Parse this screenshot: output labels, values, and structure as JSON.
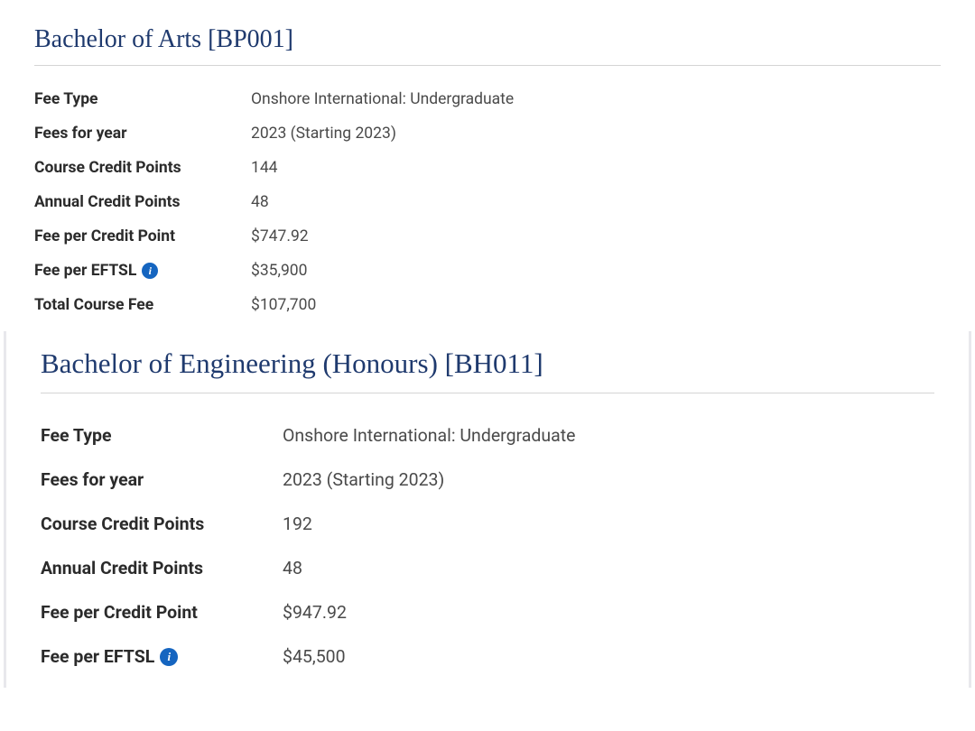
{
  "courses": [
    {
      "title": "Bachelor of Arts [BP001]",
      "rows": [
        {
          "label": "Fee Type",
          "value": "Onshore International: Undergraduate",
          "hasInfo": false
        },
        {
          "label": "Fees for year",
          "value": "2023 (Starting 2023)",
          "hasInfo": false
        },
        {
          "label": "Course Credit Points",
          "value": "144",
          "hasInfo": false
        },
        {
          "label": "Annual Credit Points",
          "value": "48",
          "hasInfo": false
        },
        {
          "label": "Fee per Credit Point",
          "value": "$747.92",
          "hasInfo": false
        },
        {
          "label": "Fee per EFTSL",
          "value": "$35,900",
          "hasInfo": true
        },
        {
          "label": "Total Course Fee",
          "value": "$107,700",
          "hasInfo": false
        }
      ]
    },
    {
      "title": "Bachelor of Engineering (Honours) [BH011]",
      "rows": [
        {
          "label": "Fee Type",
          "value": "Onshore International: Undergraduate",
          "hasInfo": false
        },
        {
          "label": "Fees for year",
          "value": "2023 (Starting 2023)",
          "hasInfo": false
        },
        {
          "label": "Course Credit Points",
          "value": "192",
          "hasInfo": false
        },
        {
          "label": "Annual Credit Points",
          "value": "48",
          "hasInfo": false
        },
        {
          "label": "Fee per Credit Point",
          "value": "$947.92",
          "hasInfo": false
        },
        {
          "label": "Fee per EFTSL",
          "value": "$45,500",
          "hasInfo": true
        }
      ]
    }
  ],
  "colors": {
    "title_color": "#1f3a6e",
    "label_color": "#2b2b2b",
    "value_color": "#4a4a4a",
    "divider_color": "#d5d5d5",
    "info_icon_bg": "#1565c0",
    "section_border": "#e8e8ec"
  },
  "typography": {
    "title_font": "Georgia, serif",
    "body_font": "Segoe UI, Roboto, sans-serif",
    "title_size_1": 28,
    "title_size_2": 31,
    "row_size_1": 17.5,
    "row_size_2": 19.5
  }
}
